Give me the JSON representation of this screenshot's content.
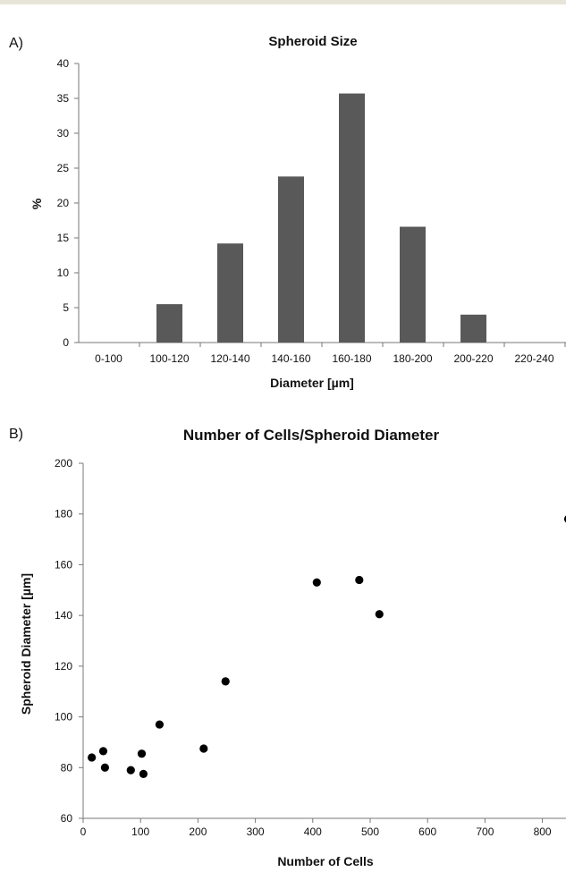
{
  "chart_data": [
    {
      "panel_label": "A)",
      "type": "bar",
      "title": "Spheroid Size",
      "xlabel": "Diameter [µm]",
      "ylabel": "%",
      "categories": [
        "0-100",
        "100-120",
        "120-140",
        "140-160",
        "160-180",
        "180-200",
        "200-220",
        "220-240"
      ],
      "values": [
        0,
        5.5,
        14.2,
        23.8,
        35.7,
        16.6,
        4.0,
        0
      ],
      "ylim": [
        0,
        40
      ],
      "yticks": [
        0,
        5,
        10,
        15,
        20,
        25,
        30,
        35,
        40
      ],
      "grid": false,
      "colors": {
        "bar": "#595959",
        "axis": "#777777"
      }
    },
    {
      "panel_label": "B)",
      "type": "scatter",
      "title": "Number of Cells/Spheroid Diameter",
      "xlabel": "Number of Cells",
      "ylabel": "Spheroid Diameter [µm]",
      "xlim": [
        0,
        845
      ],
      "ylim": [
        60,
        200
      ],
      "xticks": [
        0,
        100,
        200,
        300,
        400,
        500,
        600,
        700,
        800
      ],
      "yticks": [
        60,
        80,
        100,
        120,
        140,
        160,
        180,
        200
      ],
      "grid": false,
      "points": [
        {
          "x": 15,
          "y": 84
        },
        {
          "x": 35,
          "y": 86.5
        },
        {
          "x": 38,
          "y": 80
        },
        {
          "x": 83,
          "y": 79
        },
        {
          "x": 102,
          "y": 85.5
        },
        {
          "x": 105,
          "y": 77.5
        },
        {
          "x": 133,
          "y": 97
        },
        {
          "x": 210,
          "y": 87.5
        },
        {
          "x": 248,
          "y": 114
        },
        {
          "x": 407,
          "y": 153
        },
        {
          "x": 481,
          "y": 154
        },
        {
          "x": 516,
          "y": 140.5
        },
        {
          "x": 845,
          "y": 178
        }
      ],
      "colors": {
        "point": "#000000",
        "axis": "#777777"
      }
    }
  ]
}
